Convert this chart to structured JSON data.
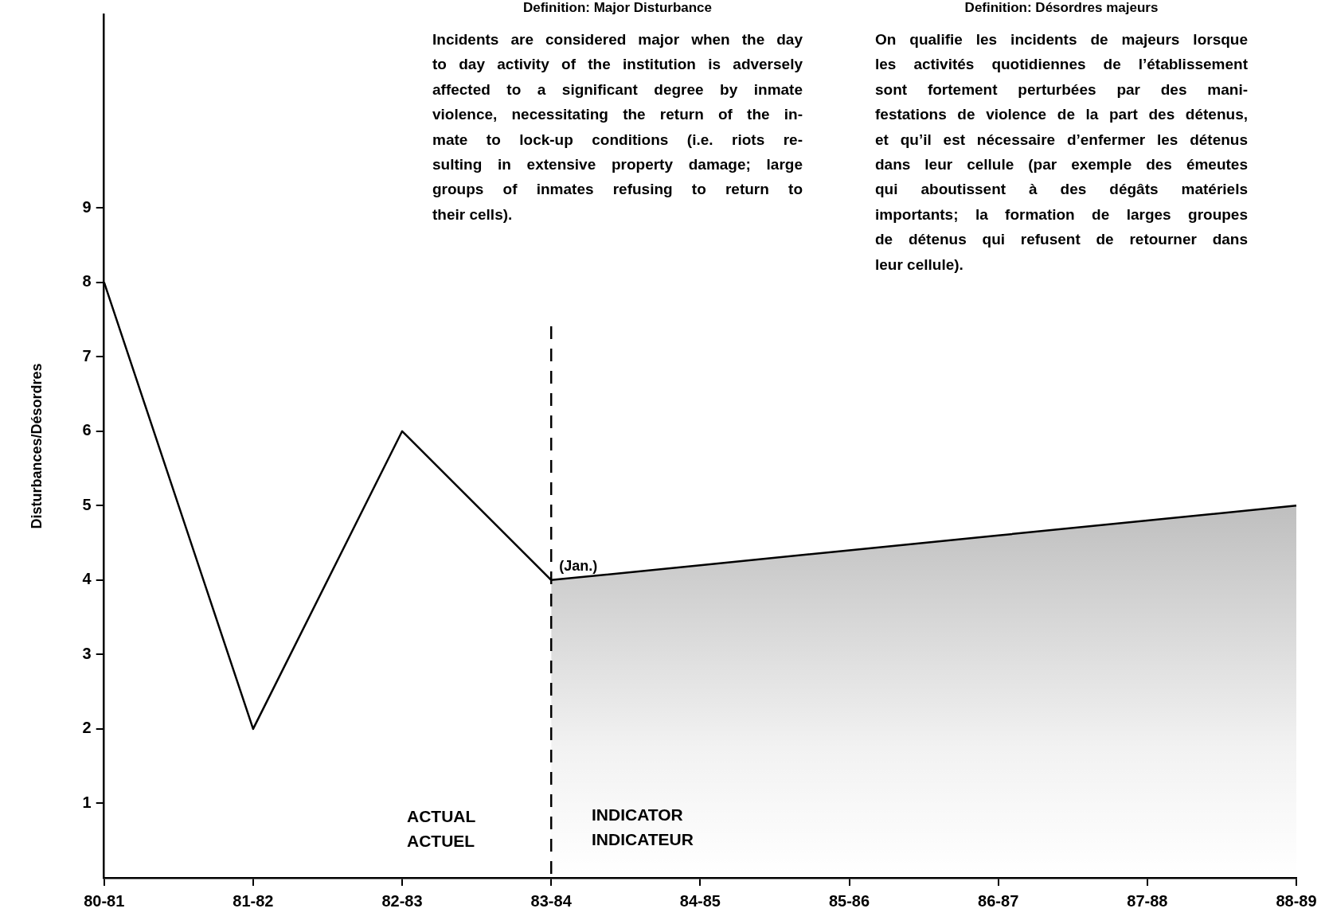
{
  "chart_data": {
    "type": "line",
    "ylabel": "Disturbances/Désordres",
    "categories": [
      "80-81",
      "81-82",
      "82-83",
      "83-84",
      "84-85",
      "85-86",
      "86-87",
      "87-88",
      "88-89"
    ],
    "series": [
      {
        "type": "line",
        "color": "#000000",
        "values": [
          8,
          2,
          6,
          4,
          null,
          null,
          null,
          null,
          null
        ]
      },
      {
        "type": "area",
        "color": "#000000",
        "values": [
          null,
          null,
          null,
          4,
          4.2,
          4.4,
          4.6,
          4.8,
          5
        ]
      }
    ],
    "ylim": [
      0,
      11.6
    ],
    "yticks": [
      1,
      2,
      3,
      4,
      5,
      6,
      7,
      8,
      9
    ],
    "grid": false,
    "legend": false,
    "marker": "none",
    "line_style": "solid",
    "ref_lines": [
      {
        "axis": "x",
        "value": "83-84",
        "line_style": "dashed",
        "color": "#000000"
      }
    ],
    "annotations": [
      "Definition: Major Disturbance",
      "Incidents are considered major when the day\nto day activity of the institution is adversely\naffected to a significant degree by inmate\nviolence, necessitating the return of the in-\nmate to lock-up conditions (i.e. riots re-\nsulting in extensive property damage; large\ngroups of inmates refusing to return to\ntheir cells).",
      "Definition: Désordres majeurs",
      "On qualifie les incidents de majeurs lorsque\nles activités quotidiennes de l’établissement\nsont fortement perturbées par des mani-\nfestations de violence de la part des détenus,\net qu’il est nécessaire d’enfermer les détenus\ndans leur cellule (par exemple des émeutes\nqui aboutissent à des dégâts matériels\nimportants; la formation de larges groupes\nde détenus qui refusent de retourner dans\nleur cellule).",
      {
        "text": "(Jan.)",
        "x": "83-84",
        "y": 4
      },
      "ACTUAL\nACTUEL",
      "INDICATOR\nINDICATEUR"
    ]
  }
}
